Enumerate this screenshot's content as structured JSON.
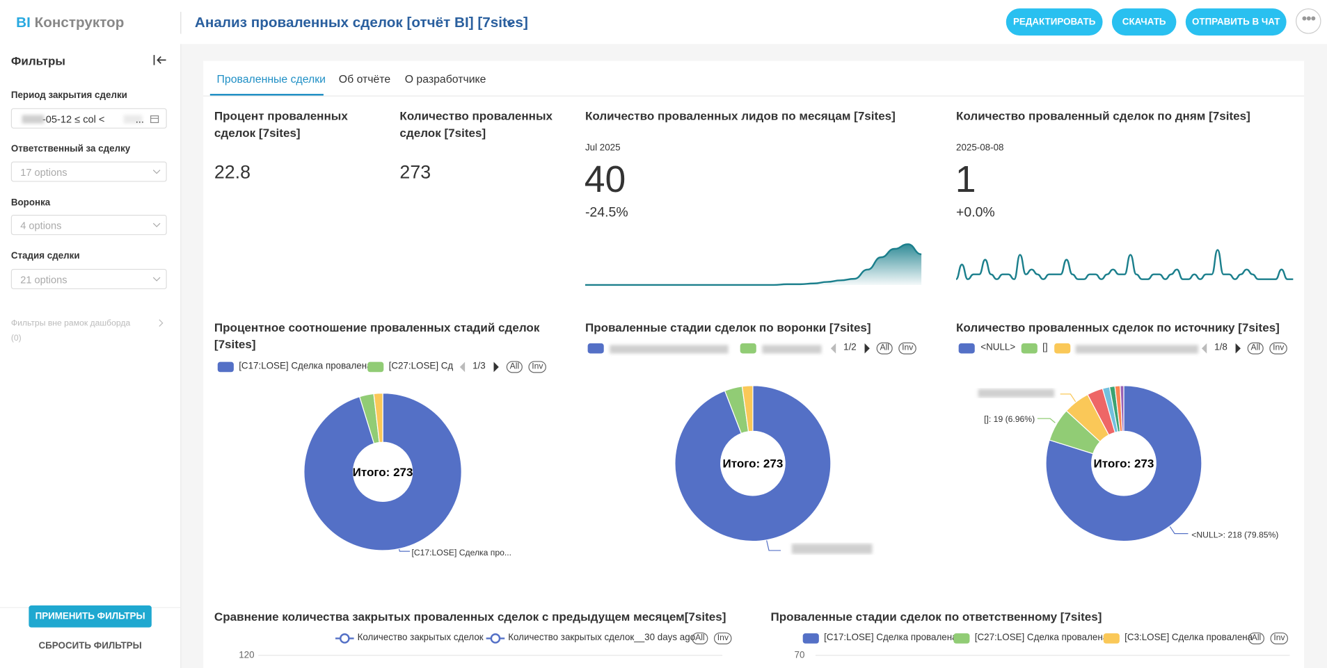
{
  "header": {
    "logo_bi": "BI",
    "logo_rest": "Конструктор",
    "title": "Анализ проваленных сделок [отчёт BI] [7sites]",
    "buttons": [
      "РЕДАКТИРОВАТЬ",
      "СКАЧАТЬ",
      "ОТПРАВИТЬ В ЧАТ"
    ]
  },
  "sidebar": {
    "title": "Фильтры",
    "filters": [
      {
        "label": "Период закрытия сделки",
        "value": "-05-12 ≤ col <",
        "value_end": "..."
      },
      {
        "label": "Ответственный за сделку",
        "value": "17 options"
      },
      {
        "label": "Воронка",
        "value": "4 options"
      },
      {
        "label": "Стадия сделки",
        "value": "21 options"
      }
    ],
    "outside": "Фильтры вне рамок дашборда",
    "outside_count": "(0)",
    "apply": "ПРИМЕНИТЬ ФИЛЬТРЫ",
    "reset": "СБРОСИТЬ ФИЛЬТРЫ"
  },
  "tabs": [
    "Проваленные сделки",
    "Об отчёте",
    "О разработчике"
  ],
  "kpis": [
    {
      "title": "Процент проваленных сделок [7sites]",
      "value": 22.8
    },
    {
      "title": "Количество проваленных сделок [7sites]",
      "value": 273
    }
  ],
  "trends": [
    {
      "title": "Количество проваленных лидов по месяцам [7sites]",
      "period": "Jul 2025",
      "value": 40,
      "change": "-24.5%",
      "color": "#1b7f8c",
      "ylim": [
        0,
        55
      ],
      "values": [
        0,
        0,
        0,
        0,
        0,
        0,
        0,
        0,
        0,
        0,
        0,
        0,
        0,
        0,
        0,
        1,
        1,
        2,
        4,
        6,
        8,
        20,
        36,
        47,
        53,
        40
      ]
    },
    {
      "title": "Количество проваленный сделок по дням [7sites]",
      "period": "2025-08-08",
      "value": 1,
      "change": "+0.0%",
      "color": "#1b7f8c",
      "ylim": [
        0,
        9
      ],
      "values": [
        1,
        4,
        1,
        2,
        2,
        5,
        2,
        1,
        2,
        2,
        1,
        6,
        2,
        3,
        2,
        1,
        2,
        2,
        2,
        5,
        2,
        1,
        1,
        2,
        2,
        1,
        2,
        3,
        2,
        2,
        6,
        2,
        1,
        1,
        2,
        2,
        1,
        2,
        3,
        1,
        1,
        2,
        1,
        2,
        2,
        7,
        2,
        2,
        1,
        2,
        3,
        2,
        1,
        1,
        1,
        1,
        3,
        1,
        1
      ]
    }
  ],
  "legend_buttons": [
    "All",
    "Inv"
  ],
  "pies": [
    {
      "title": "Процентное соотношение проваленных стадий сделок [7sites]",
      "legend": [
        "[C17:LOSE] Сделка провалена",
        "[C27:LOSE] Сдел"
      ],
      "pager": "1/3",
      "total": "Итого: 273",
      "values": [
        260,
        8,
        5
      ],
      "colors": [
        "#5470c6",
        "#91cc75",
        "#fac858"
      ],
      "callouts": [
        "[C17:LOSE] Сделка про..."
      ]
    },
    {
      "title": "Проваленные стадии сделок по воронки [7sites]",
      "legend": [],
      "pager": "1/2",
      "total": "Итого: 273",
      "values": [
        257,
        10,
        6
      ],
      "colors": [
        "#5470c6",
        "#91cc75",
        "#fac858"
      ],
      "callouts": []
    },
    {
      "title": "Количество проваленных сделок по источнику [7sites]",
      "legend": [
        "<NULL>",
        "[]"
      ],
      "pager": "1/8",
      "total": "Итого: 273",
      "values": [
        218,
        19,
        15,
        9,
        4,
        3,
        3,
        2
      ],
      "colors": [
        "#5470c6",
        "#91cc75",
        "#fac858",
        "#ee6666",
        "#73c0de",
        "#3ba272",
        "#fc8452",
        "#9a60b4"
      ],
      "callouts": [
        "<NULL>: 218 (79.85%)",
        "[]: 19 (6.96%)"
      ]
    }
  ],
  "bottom": [
    {
      "title": "Сравнение количества закрытых проваленных сделок с предыдущем месяцем[7sites]",
      "legend": [
        "Количество закрытых сделок",
        "Количество закрытых сделок__30 days ago"
      ],
      "yticks": [
        120
      ]
    },
    {
      "title": "Проваленные стадии сделок по ответственному [7sites]",
      "legend": [
        "[C17:LOSE] Сделка провалена",
        "[C27:LOSE] Сделка провалена",
        "[C3:LOSE] Сделка провалена"
      ],
      "colors": [
        "#5470c6",
        "#91cc75",
        "#fac858"
      ],
      "yticks": [
        70
      ]
    }
  ]
}
